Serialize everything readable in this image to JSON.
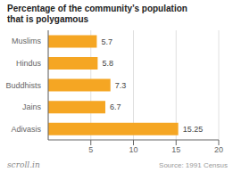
{
  "chart_data": {
    "type": "bar",
    "orientation": "horizontal",
    "title": "Percentage of the community’s population\nthat is polygamous",
    "categories": [
      "Muslims",
      "Hindus",
      "Buddhists",
      "Jains",
      "Adivasis"
    ],
    "values": [
      5.7,
      5.8,
      7.3,
      6.7,
      15.25
    ],
    "color": "#F5A623",
    "xlim": [
      0,
      20
    ],
    "xticks": [
      5,
      10,
      15,
      20
    ],
    "grid": true,
    "data_labels": true,
    "annotations": [
      "Source: 1991 Census",
      "scroll.in"
    ]
  }
}
